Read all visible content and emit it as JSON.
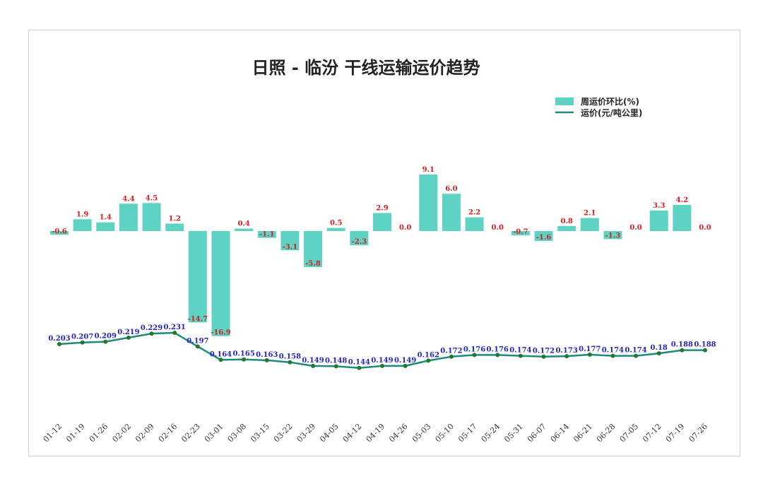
{
  "chart_data": {
    "type": "bar",
    "title": "日照 - 临汾 干线运输运价趋势",
    "categories": [
      "01-12",
      "01-19",
      "01-26",
      "02-02",
      "02-09",
      "02-16",
      "02-23",
      "03-01",
      "03-08",
      "03-15",
      "03-22",
      "03-29",
      "04-05",
      "04-12",
      "04-19",
      "04-26",
      "05-03",
      "05-10",
      "05-17",
      "05-24",
      "05-31",
      "06-07",
      "06-14",
      "06-21",
      "06-28",
      "07-05",
      "07-12",
      "07-19",
      "07-26"
    ],
    "series": [
      {
        "name": "周运价环比(%)",
        "type": "bar",
        "color": "#5fd3c3",
        "values": [
          -0.6,
          1.9,
          1.4,
          4.4,
          4.5,
          1.2,
          -14.7,
          -16.9,
          0.4,
          -1.1,
          -3.1,
          -5.8,
          0.5,
          -2.3,
          2.9,
          0.0,
          9.1,
          6.0,
          2.2,
          0.0,
          -0.7,
          -1.6,
          0.8,
          2.1,
          -1.3,
          0.0,
          3.3,
          4.2,
          0.0
        ],
        "labels": [
          "-0.6",
          "1.9",
          "1.4",
          "4.4",
          "4.5",
          "1.2",
          "-14.7",
          "-16.9",
          "0.4",
          "-1.1",
          "-3.1",
          "-5.8",
          "0.5",
          "-2.3",
          "2.9",
          "0.0",
          "9.1",
          "6.0",
          "2.2",
          "0.0",
          "-0.7",
          "-1.6",
          "0.8",
          "2.1",
          "-1.3",
          "0.0",
          "3.3",
          "4.2",
          "0.0"
        ]
      },
      {
        "name": "运价(元/吨公里)",
        "type": "line",
        "color": "#1e8a7e",
        "values": [
          0.203,
          0.207,
          0.209,
          0.219,
          0.229,
          0.231,
          0.197,
          0.164,
          0.165,
          0.163,
          0.158,
          0.149,
          0.148,
          0.144,
          0.149,
          0.149,
          0.162,
          0.172,
          0.176,
          0.176,
          0.174,
          0.172,
          0.173,
          0.177,
          0.174,
          0.174,
          0.18,
          0.188,
          0.188
        ],
        "labels": [
          "0.203",
          "0.207",
          "0.209",
          "0.219",
          "0.229",
          "0.231",
          "0.197",
          "0.164",
          "0.165",
          "0.163",
          "0.158",
          "0.149",
          "0.148",
          "0.144",
          "0.149",
          "0.149",
          "0.162",
          "0.172",
          "0.176",
          "0.176",
          "0.174",
          "0.172",
          "0.173",
          "0.177",
          "0.174",
          "0.174",
          "0.18",
          "0.188",
          "0.188"
        ]
      }
    ],
    "legend_position": "top-right",
    "grid": false,
    "colors": {
      "bar": "#5fd3c3",
      "line": "#1e8a7e",
      "marker": "#1f7a2e",
      "bar_label": "#d42020",
      "line_label": "#2323c8"
    }
  }
}
